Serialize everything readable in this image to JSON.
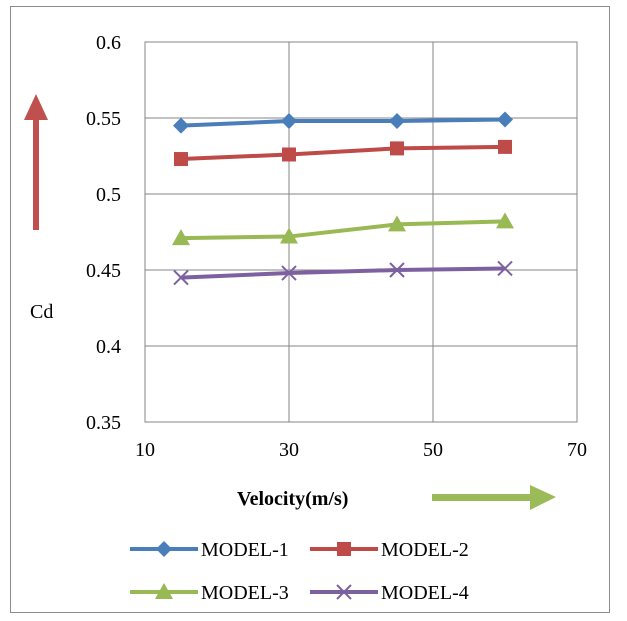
{
  "chart_data": {
    "type": "line",
    "title": "",
    "xlabel": "Velocity(m/s)",
    "ylabel": "Cd",
    "xlim": [
      10,
      70
    ],
    "ylim": [
      0.35,
      0.6
    ],
    "xticks": [
      "10",
      "30",
      "50",
      "70"
    ],
    "yticks": [
      "0.6",
      "0.55",
      "0.5",
      "0.45",
      "0.4",
      "0.35"
    ],
    "grid": true,
    "legend_position": "bottom",
    "x": [
      15,
      30,
      45,
      60
    ],
    "series": [
      {
        "name": "MODEL-1",
        "values": [
          0.545,
          0.548,
          0.548,
          0.549
        ],
        "color": "#4a7ebb",
        "marker": "diamond"
      },
      {
        "name": "MODEL-2",
        "values": [
          0.523,
          0.526,
          0.53,
          0.531
        ],
        "color": "#be4b48",
        "marker": "square"
      },
      {
        "name": "MODEL-3",
        "values": [
          0.471,
          0.472,
          0.48,
          0.482
        ],
        "color": "#98b954",
        "marker": "triangle"
      },
      {
        "name": "MODEL-4",
        "values": [
          0.445,
          0.448,
          0.45,
          0.451
        ],
        "color": "#7d60a0",
        "marker": "x"
      }
    ],
    "annotations": [
      {
        "type": "arrow",
        "direction": "up",
        "color": "#c0504d"
      },
      {
        "type": "arrow",
        "direction": "right",
        "color": "#9bbb59"
      }
    ]
  }
}
